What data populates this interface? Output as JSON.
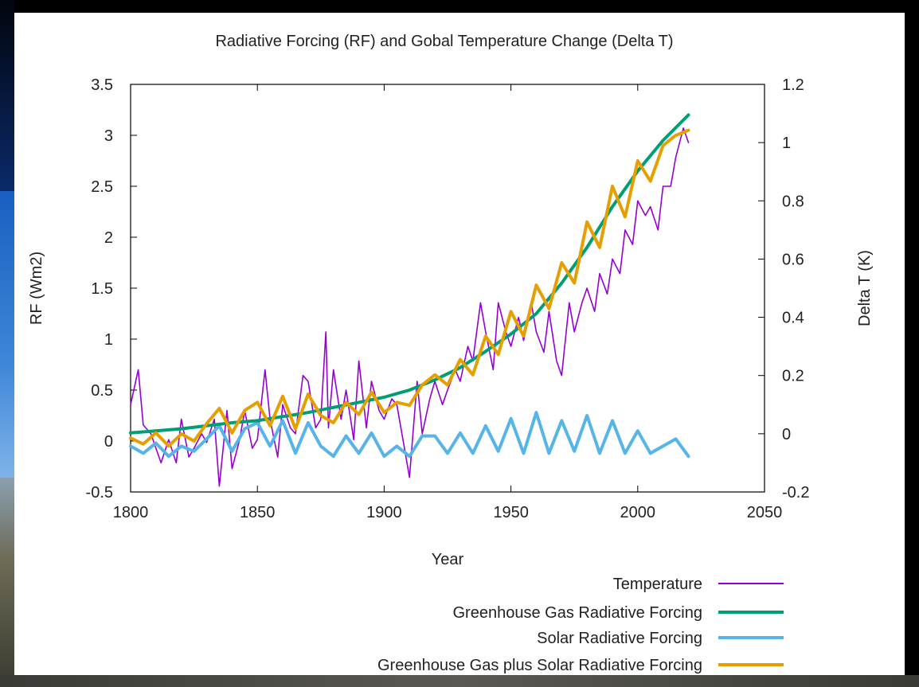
{
  "chart_data": {
    "type": "line",
    "title": "Radiative Forcing (RF) and Gobal Temperature Change (Delta T)",
    "xlabel": "Year",
    "ylabel": "RF (Wm2)",
    "y2label": "Delta T (K)",
    "xlim": [
      1800,
      2050
    ],
    "ylim": [
      -0.5,
      3.5
    ],
    "y2lim": [
      -0.2,
      1.2
    ],
    "xticks": [
      "1800",
      "1850",
      "1900",
      "1950",
      "2000",
      "2050"
    ],
    "yticks": [
      "-0.5",
      "0",
      "0.5",
      "1",
      "1.5",
      "2",
      "2.5",
      "3",
      "3.5"
    ],
    "y2ticks": [
      "-0.2",
      "0",
      "0.2",
      "0.4",
      "0.6",
      "0.8",
      "1",
      "1.2"
    ],
    "grid": false,
    "legend_position": "bottom-right",
    "series": [
      {
        "name": "Temperature",
        "axis": "right",
        "color": "#9400d3",
        "x": [
          1800,
          1803,
          1805,
          1808,
          1810,
          1812,
          1815,
          1818,
          1820,
          1823,
          1825,
          1828,
          1830,
          1833,
          1835,
          1838,
          1840,
          1843,
          1845,
          1848,
          1850,
          1853,
          1855,
          1858,
          1860,
          1863,
          1865,
          1868,
          1870,
          1873,
          1875,
          1877,
          1878,
          1880,
          1883,
          1885,
          1888,
          1890,
          1893,
          1895,
          1898,
          1900,
          1903,
          1905,
          1908,
          1910,
          1913,
          1915,
          1918,
          1920,
          1923,
          1925,
          1928,
          1930,
          1933,
          1935,
          1938,
          1940,
          1943,
          1945,
          1948,
          1950,
          1953,
          1955,
          1958,
          1960,
          1963,
          1965,
          1968,
          1970,
          1973,
          1975,
          1978,
          1980,
          1983,
          1985,
          1988,
          1990,
          1993,
          1995,
          1998,
          2000,
          2003,
          2005,
          2008,
          2010,
          2013,
          2015,
          2018,
          2020
        ],
        "values": [
          0.1,
          0.22,
          0.03,
          0.0,
          -0.05,
          -0.1,
          -0.02,
          -0.1,
          0.05,
          -0.08,
          -0.05,
          0.0,
          -0.03,
          0.05,
          -0.18,
          0.08,
          -0.12,
          -0.02,
          0.08,
          -0.05,
          -0.02,
          0.22,
          0.05,
          -0.08,
          0.1,
          0.02,
          0.0,
          0.2,
          0.18,
          0.02,
          0.05,
          0.35,
          0.02,
          0.22,
          0.05,
          0.15,
          -0.02,
          0.25,
          0.02,
          0.18,
          0.08,
          0.05,
          0.12,
          0.1,
          -0.05,
          -0.15,
          0.18,
          0.0,
          0.12,
          0.18,
          0.1,
          0.15,
          0.22,
          0.18,
          0.3,
          0.25,
          0.45,
          0.35,
          0.22,
          0.45,
          0.35,
          0.3,
          0.4,
          0.32,
          0.45,
          0.35,
          0.28,
          0.42,
          0.25,
          0.2,
          0.45,
          0.35,
          0.45,
          0.5,
          0.42,
          0.55,
          0.48,
          0.6,
          0.55,
          0.7,
          0.65,
          0.8,
          0.75,
          0.78,
          0.7,
          0.85,
          0.85,
          0.95,
          1.05,
          1.0
        ]
      },
      {
        "name": "Greenhouse Gas Radiative Forcing",
        "axis": "left",
        "color": "#009e73",
        "x": [
          1800,
          1810,
          1820,
          1830,
          1840,
          1850,
          1860,
          1870,
          1880,
          1890,
          1900,
          1910,
          1920,
          1930,
          1940,
          1950,
          1960,
          1970,
          1980,
          1990,
          2000,
          2010,
          2020
        ],
        "values": [
          0.08,
          0.1,
          0.12,
          0.15,
          0.18,
          0.2,
          0.24,
          0.28,
          0.33,
          0.38,
          0.43,
          0.5,
          0.6,
          0.72,
          0.88,
          1.05,
          1.25,
          1.55,
          1.9,
          2.3,
          2.65,
          2.95,
          3.2
        ]
      },
      {
        "name": "Solar Radiative Forcing",
        "axis": "left",
        "color": "#56b4e9",
        "x": [
          1800,
          1805,
          1810,
          1815,
          1820,
          1825,
          1830,
          1835,
          1840,
          1845,
          1850,
          1855,
          1860,
          1865,
          1870,
          1875,
          1880,
          1885,
          1890,
          1895,
          1900,
          1905,
          1910,
          1915,
          1920,
          1925,
          1930,
          1935,
          1940,
          1945,
          1950,
          1955,
          1960,
          1965,
          1970,
          1975,
          1980,
          1985,
          1990,
          1995,
          2000,
          2005,
          2010,
          2015,
          2020
        ],
        "values": [
          -0.05,
          -0.12,
          -0.02,
          -0.15,
          -0.05,
          -0.1,
          0.02,
          0.15,
          -0.1,
          0.12,
          0.18,
          -0.05,
          0.2,
          -0.12,
          0.18,
          -0.05,
          -0.15,
          0.05,
          -0.12,
          0.08,
          -0.15,
          -0.05,
          -0.15,
          0.05,
          0.05,
          -0.12,
          0.08,
          -0.12,
          0.15,
          -0.1,
          0.22,
          -0.12,
          0.28,
          -0.12,
          0.2,
          -0.1,
          0.25,
          -0.12,
          0.2,
          -0.12,
          0.1,
          -0.12,
          -0.05,
          0.02,
          -0.15
        ]
      },
      {
        "name": "Greenhouse Gas plus Solar Radiative Forcing",
        "axis": "left",
        "color": "#e69f00",
        "x": [
          1800,
          1805,
          1810,
          1815,
          1820,
          1825,
          1830,
          1835,
          1840,
          1845,
          1850,
          1855,
          1860,
          1865,
          1870,
          1875,
          1880,
          1885,
          1890,
          1895,
          1900,
          1905,
          1910,
          1915,
          1920,
          1925,
          1930,
          1935,
          1940,
          1945,
          1950,
          1955,
          1960,
          1965,
          1970,
          1975,
          1980,
          1985,
          1990,
          1995,
          2000,
          2005,
          2010,
          2015,
          2020
        ],
        "values": [
          0.03,
          -0.03,
          0.08,
          -0.05,
          0.07,
          0.0,
          0.17,
          0.32,
          0.08,
          0.3,
          0.38,
          0.15,
          0.44,
          0.12,
          0.46,
          0.25,
          0.18,
          0.38,
          0.26,
          0.48,
          0.28,
          0.38,
          0.35,
          0.55,
          0.65,
          0.55,
          0.8,
          0.65,
          1.03,
          0.85,
          1.27,
          1.03,
          1.53,
          1.3,
          1.75,
          1.55,
          2.15,
          1.9,
          2.5,
          2.2,
          2.75,
          2.55,
          2.9,
          3.0,
          3.05
        ]
      }
    ]
  }
}
